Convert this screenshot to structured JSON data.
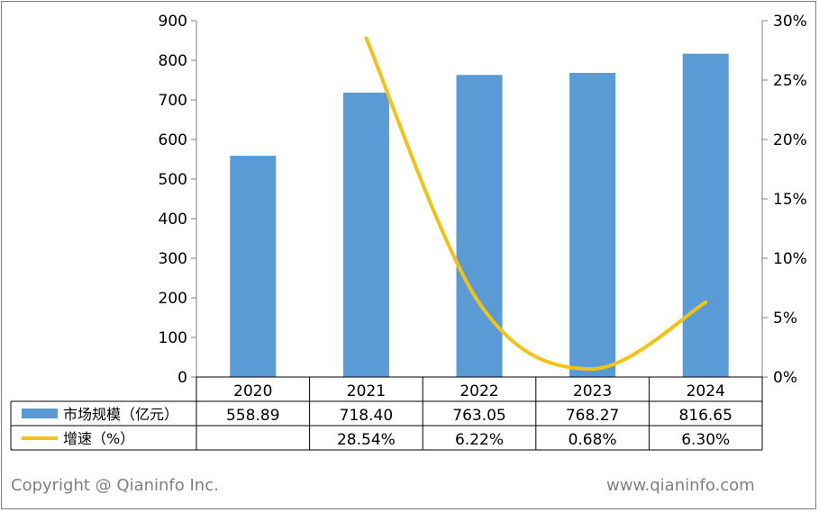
{
  "chart_data": {
    "type": "bar",
    "categories": [
      "2020",
      "2021",
      "2022",
      "2023",
      "2024"
    ],
    "y_left": {
      "ylim": [
        0,
        900
      ],
      "ticks": [
        "0",
        "100",
        "200",
        "300",
        "400",
        "500",
        "600",
        "700",
        "800",
        "900"
      ]
    },
    "y_right": {
      "ylim": [
        0,
        30
      ],
      "ticks": [
        "0%",
        "5%",
        "10%",
        "15%",
        "20%",
        "25%",
        "30%"
      ]
    },
    "series": [
      {
        "name": "市场规模（亿元）",
        "type": "bar",
        "axis": "left",
        "color": "#5b9bd5",
        "values": [
          558.89,
          718.4,
          763.05,
          768.27,
          816.65
        ],
        "labels": [
          "558.89",
          "718.40",
          "763.05",
          "768.27",
          "816.65"
        ]
      },
      {
        "name": "增速（%）",
        "type": "line",
        "axis": "right",
        "color": "#f2c314",
        "smooth": true,
        "values": [
          null,
          28.54,
          6.22,
          0.68,
          6.3
        ],
        "labels": [
          "",
          "28.54%",
          "6.22%",
          "0.68%",
          "6.30%"
        ]
      }
    ],
    "data_table": true,
    "gridlines": false
  },
  "footer": {
    "copyright": "Copyright @ Qianinfo Inc.",
    "website": "www.qianinfo.com"
  }
}
